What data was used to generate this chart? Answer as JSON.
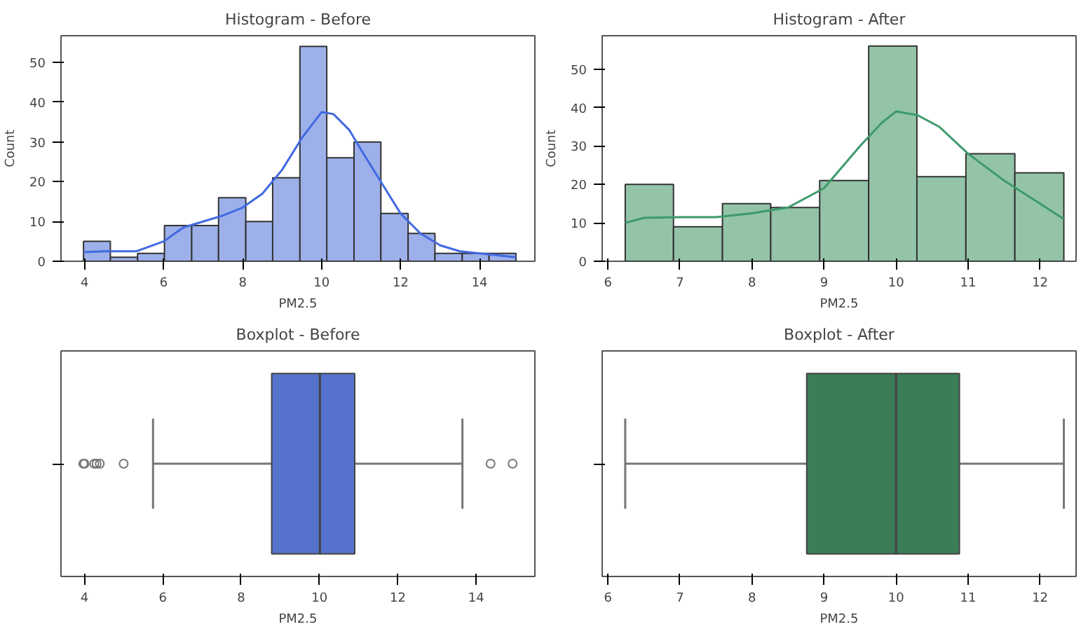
{
  "chart_data": [
    {
      "type": "histogram",
      "title": "Histogram - Before",
      "xlabel": "PM2.5",
      "ylabel": "Count",
      "bins": [
        3.97,
        4.65,
        5.34,
        6.02,
        6.71,
        7.39,
        8.08,
        8.76,
        9.45,
        10.13,
        10.82,
        11.5,
        12.19,
        12.87,
        13.56,
        14.24,
        14.92
      ],
      "values": [
        5,
        1,
        2,
        9,
        9,
        16,
        10,
        21,
        54,
        26,
        30,
        12,
        7,
        2,
        2,
        2
      ],
      "color": "#9db0ea",
      "xlim": [
        3.4,
        15.4
      ],
      "xticks": [
        4,
        6,
        8,
        10,
        12,
        14
      ],
      "ylim": [
        0,
        56.7
      ],
      "yticks": [
        0,
        10,
        20,
        30,
        40,
        50
      ],
      "series": [
        {
          "type": "line",
          "color": "#4169e1",
          "x": [
            3.97,
            4.5,
            5.3,
            6,
            6.5,
            7,
            7.5,
            8,
            8.5,
            9,
            9.5,
            10,
            10.3,
            10.7,
            11,
            11.5,
            12,
            12.5,
            13,
            13.5,
            14,
            14.92
          ],
          "values": [
            2.3,
            2.5,
            2.5,
            5,
            8.5,
            10,
            11.5,
            13.5,
            17,
            23,
            31,
            37.5,
            37,
            33,
            28,
            20,
            12,
            7,
            4,
            2.5,
            2,
            1
          ]
        }
      ]
    },
    {
      "type": "histogram",
      "title": "Histogram - After",
      "xlabel": "PM2.5",
      "ylabel": "Count",
      "bins": [
        6.24,
        6.91,
        7.59,
        8.26,
        8.94,
        9.62,
        10.29,
        10.97,
        11.65,
        12.33
      ],
      "values": [
        20,
        9,
        15,
        14,
        21,
        56,
        22,
        28,
        23
      ],
      "color": "#93c4a7",
      "xlim": [
        5.92,
        12.5
      ],
      "xticks": [
        6,
        7,
        8,
        9,
        10,
        11,
        12
      ],
      "ylim": [
        0,
        58.7
      ],
      "yticks": [
        0,
        10,
        20,
        30,
        40,
        50
      ],
      "series": [
        {
          "type": "line",
          "color": "#3d9a6a",
          "x": [
            6.24,
            6.5,
            7,
            7.5,
            8,
            8.5,
            9,
            9.5,
            9.8,
            10,
            10.3,
            10.6,
            11,
            11.5,
            12,
            12.33
          ],
          "values": [
            10,
            11.3,
            11.5,
            11.5,
            12.5,
            14,
            19,
            30,
            36,
            39,
            38,
            35,
            28,
            21,
            15,
            11
          ]
        }
      ]
    },
    {
      "type": "box",
      "orientation": "horizontal",
      "title": "Boxplot - Before",
      "xlabel": "PM2.5",
      "categories": [
        null
      ],
      "color": "#5573cd",
      "xlim": [
        3.4,
        15.5
      ],
      "xticks": [
        4,
        6,
        8,
        10,
        12,
        14
      ],
      "tick_labels": "x",
      "boxes": [
        {
          "low": 5.75,
          "q1": 8.78,
          "median": 10.01,
          "q3": 10.9,
          "high": 13.65,
          "outliers": [
            3.97,
            4.0,
            4.25,
            4.31,
            4.39,
            5.0,
            14.37,
            14.93
          ]
        }
      ]
    },
    {
      "type": "box",
      "orientation": "horizontal",
      "title": "Boxplot - After",
      "xlabel": "PM2.5",
      "categories": [
        null
      ],
      "color": "#3a7d57",
      "xlim": [
        5.92,
        12.5
      ],
      "xticks": [
        6,
        7,
        8,
        9,
        10,
        11,
        12
      ],
      "tick_labels": "x",
      "boxes": [
        {
          "low": 6.24,
          "q1": 8.76,
          "median": 10.0,
          "q3": 10.88,
          "high": 12.33
        }
      ]
    }
  ]
}
